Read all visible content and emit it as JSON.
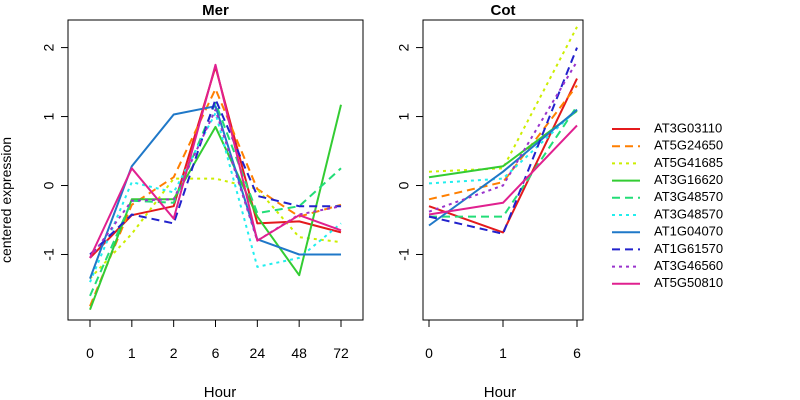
{
  "figure": {
    "ylabel": "centered expression",
    "xlabel": "Hour"
  },
  "legend": {
    "position": "right",
    "entries": [
      {
        "name": "AT3G03110",
        "color": "#e41a1c",
        "dash": "solid"
      },
      {
        "name": "AT5G24650",
        "color": "#ff7f00",
        "dash": "long"
      },
      {
        "name": "AT5G41685",
        "color": "#ccee00",
        "dash": "dot"
      },
      {
        "name": "AT3G16620",
        "color": "#33cc33",
        "dash": "solid"
      },
      {
        "name": "AT3G48570",
        "color": "#22dd77",
        "dash": "long"
      },
      {
        "name": "AT3G48570",
        "color": "#22eeee",
        "dash": "dot"
      },
      {
        "name": "AT1G04070",
        "color": "#1f78c8",
        "dash": "solid"
      },
      {
        "name": "AT1G61570",
        "color": "#2222cc",
        "dash": "long"
      },
      {
        "name": "AT3G46560",
        "color": "#9933cc",
        "dash": "dot"
      },
      {
        "name": "AT5G50810",
        "color": "#e0208f",
        "dash": "solid"
      }
    ]
  },
  "chart_data": [
    {
      "type": "line",
      "title": "Mer",
      "xlabel": "Hour",
      "ylabel": "centered expression",
      "categories": [
        "0",
        "1",
        "2",
        "6",
        "24",
        "48",
        "72"
      ],
      "ylim": [
        -1.95,
        2.4
      ],
      "yticks": [
        -1,
        0,
        1,
        2
      ],
      "grid": false,
      "series": [
        {
          "name": "AT3G03110",
          "values": [
            -1.05,
            -0.43,
            -0.3,
            1.72,
            -0.55,
            -0.52,
            -0.68
          ]
        },
        {
          "name": "AT5G24650",
          "values": [
            -1.75,
            -0.28,
            0.12,
            1.4,
            -0.05,
            -0.45,
            -0.28
          ]
        },
        {
          "name": "AT5G41685",
          "values": [
            -1.35,
            -0.7,
            0.1,
            0.1,
            -0.05,
            -0.75,
            -0.82
          ]
        },
        {
          "name": "AT3G16620",
          "values": [
            -1.8,
            -0.2,
            -0.2,
            0.85,
            -0.45,
            -1.3,
            1.17
          ]
        },
        {
          "name": "AT3G48570",
          "values": [
            -1.6,
            -0.22,
            -0.25,
            1.2,
            -0.4,
            -0.3,
            0.25
          ]
        },
        {
          "name": "AT3G48570",
          "values": [
            -1.4,
            0.05,
            -0.1,
            1.05,
            -1.18,
            -1.05,
            -0.55
          ]
        },
        {
          "name": "AT1G04070",
          "values": [
            -1.35,
            0.28,
            1.03,
            1.15,
            -0.78,
            -1.0,
            -1.0
          ]
        },
        {
          "name": "AT1G61570",
          "values": [
            -1.0,
            -0.42,
            -0.55,
            1.25,
            -0.15,
            -0.3,
            -0.3
          ]
        },
        {
          "name": "AT3G46560",
          "values": [
            -1.05,
            -0.22,
            -0.2,
            1.1,
            -0.8,
            -0.42,
            -0.3
          ]
        },
        {
          "name": "AT5G50810",
          "values": [
            -1.05,
            0.25,
            -0.48,
            1.75,
            -0.8,
            -0.43,
            -0.65
          ]
        }
      ]
    },
    {
      "type": "line",
      "title": "Cot",
      "xlabel": "Hour",
      "categories": [
        "0",
        "1",
        "6"
      ],
      "ylim": [
        -1.95,
        2.4
      ],
      "yticks": [
        -1,
        0,
        1,
        2
      ],
      "grid": false,
      "series": [
        {
          "name": "AT3G03110",
          "values": [
            -0.3,
            -0.68,
            1.55
          ]
        },
        {
          "name": "AT5G24650",
          "values": [
            -0.2,
            0.05,
            1.45
          ]
        },
        {
          "name": "AT5G41685",
          "values": [
            0.2,
            0.25,
            2.3
          ]
        },
        {
          "name": "AT3G16620",
          "values": [
            0.12,
            0.28,
            1.08
          ]
        },
        {
          "name": "AT3G48570",
          "values": [
            -0.45,
            -0.45,
            1.15
          ]
        },
        {
          "name": "AT3G48570",
          "values": [
            0.03,
            0.1,
            1.1
          ]
        },
        {
          "name": "AT1G04070",
          "values": [
            -0.58,
            0.2,
            1.1
          ]
        },
        {
          "name": "AT1G61570",
          "values": [
            -0.45,
            -0.7,
            2.0
          ]
        },
        {
          "name": "AT3G46560",
          "values": [
            -0.38,
            0.0,
            1.8
          ]
        },
        {
          "name": "AT5G50810",
          "values": [
            -0.42,
            -0.25,
            0.87
          ]
        }
      ]
    }
  ]
}
